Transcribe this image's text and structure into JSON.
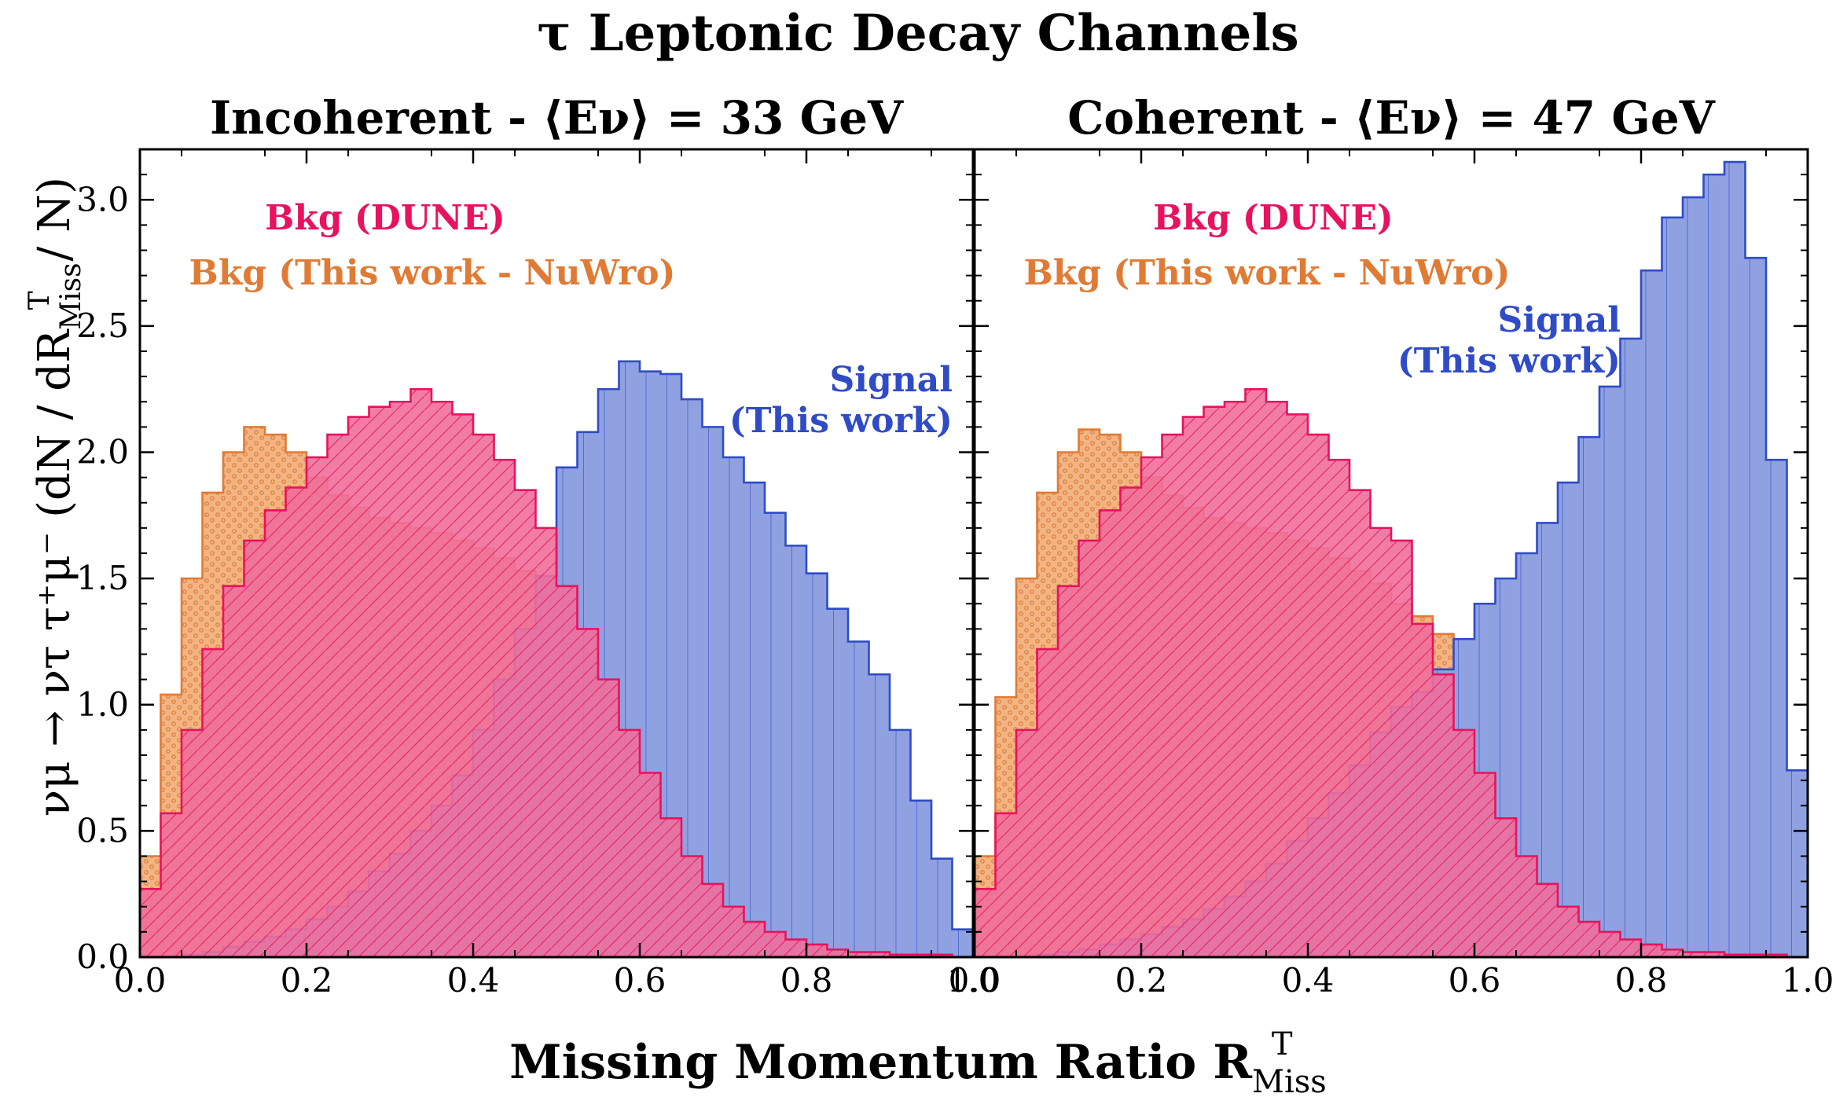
{
  "figure": {
    "title": "τ Leptonic Decay Channels",
    "ylabel": "νμ → ντ τ⁺μ⁻ (dN / dR",
    "ylabel_sup": "T",
    "ylabel_sub": "Miss",
    "ylabel_tail": " / N)",
    "xlabel": "Missing Momentum Ratio R",
    "xlabel_sup": "T",
    "xlabel_sub": "Miss"
  },
  "colors": {
    "signal_fill": "#8fa1e0",
    "signal_edge": "#2f4bc7",
    "dune_fill": "#f06f9b",
    "dune_edge": "#e8125e",
    "nuwro_fill": "#f2b483",
    "nuwro_edge": "#e07b35"
  },
  "chart_data": [
    {
      "type": "bar",
      "title": "Incoherent - ⟨Eν⟩ = 33 GeV",
      "xlim": [
        0.0,
        1.0
      ],
      "ylim": [
        0.0,
        3.2
      ],
      "xticks": [
        "0.0",
        "0.2",
        "0.4",
        "0.6",
        "0.8",
        "1.0"
      ],
      "yticks": [
        "0.0",
        "0.5",
        "1.0",
        "1.5",
        "2.0",
        "2.5",
        "3.0"
      ],
      "bin_width": 0.025,
      "legend": {
        "dune": "Bkg (DUNE)",
        "nuwro": "Bkg (This work - NuWro)",
        "signal_line1": "Signal",
        "signal_line2": "(This work)"
      },
      "series": [
        {
          "name": "Bkg (This work - NuWro)",
          "key": "nuwro",
          "values": [
            0.4,
            1.04,
            1.5,
            1.84,
            2.0,
            2.1,
            2.07,
            2.0,
            1.9,
            1.83,
            1.78,
            1.74,
            1.72,
            1.7,
            1.68,
            1.65,
            1.62,
            1.58,
            1.53,
            1.48,
            1.4,
            1.35,
            1.2,
            1.0,
            0.8,
            0.58,
            0.4,
            0.3,
            0.22,
            0.16,
            0.12,
            0.09,
            0.07,
            0.05,
            0.04,
            0.03,
            0.02,
            0.01,
            0.01,
            0.0
          ]
        },
        {
          "name": "Bkg (DUNE)",
          "key": "dune",
          "values": [
            0.27,
            0.57,
            0.9,
            1.22,
            1.47,
            1.65,
            1.77,
            1.86,
            1.98,
            2.07,
            2.14,
            2.18,
            2.2,
            2.25,
            2.2,
            2.15,
            2.07,
            1.97,
            1.85,
            1.7,
            1.47,
            1.3,
            1.1,
            0.9,
            0.73,
            0.55,
            0.4,
            0.29,
            0.2,
            0.14,
            0.1,
            0.07,
            0.05,
            0.03,
            0.02,
            0.02,
            0.01,
            0.01,
            0.01,
            0.0
          ]
        },
        {
          "name": "Signal",
          "key": "signal",
          "values": [
            0.0,
            0.0,
            0.01,
            0.02,
            0.04,
            0.06,
            0.08,
            0.11,
            0.15,
            0.2,
            0.26,
            0.34,
            0.41,
            0.5,
            0.6,
            0.72,
            0.9,
            1.1,
            1.3,
            1.51,
            1.94,
            2.08,
            2.25,
            2.36,
            2.32,
            2.31,
            2.21,
            2.1,
            1.98,
            1.88,
            1.76,
            1.63,
            1.52,
            1.38,
            1.25,
            1.12,
            0.9,
            0.62,
            0.39,
            0.11
          ]
        }
      ],
      "legend_font_size_px": 44,
      "legend_layout": "upper-left-inset"
    },
    {
      "type": "bar",
      "title": "Coherent - ⟨Eν⟩ = 47 GeV",
      "xlim": [
        0.0,
        1.0
      ],
      "ylim": [
        0.0,
        3.2
      ],
      "xticks": [
        "0.0",
        "0.2",
        "0.4",
        "0.6",
        "0.8",
        "1.0"
      ],
      "yticks": [],
      "bin_width": 0.025,
      "legend": {
        "dune": "Bkg (DUNE)",
        "nuwro": "Bkg (This work - NuWro)",
        "signal_line1": "Signal",
        "signal_line2": "(This work)"
      },
      "series": [
        {
          "name": "Bkg (This work - NuWro)",
          "key": "nuwro",
          "values": [
            0.4,
            1.03,
            1.5,
            1.84,
            2.0,
            2.09,
            2.07,
            2.0,
            1.9,
            1.83,
            1.78,
            1.74,
            1.72,
            1.7,
            1.68,
            1.65,
            1.62,
            1.58,
            1.53,
            1.48,
            1.4,
            1.35,
            1.28,
            1.2,
            1.0,
            0.8,
            0.58,
            0.4,
            0.3,
            0.22,
            0.16,
            0.12,
            0.09,
            0.07,
            0.05,
            0.04,
            0.03,
            0.02,
            0.01,
            0.0
          ]
        },
        {
          "name": "Bkg (DUNE)",
          "key": "dune",
          "values": [
            0.27,
            0.57,
            0.9,
            1.22,
            1.47,
            1.65,
            1.77,
            1.86,
            1.98,
            2.07,
            2.14,
            2.18,
            2.2,
            2.25,
            2.2,
            2.15,
            2.07,
            1.97,
            1.85,
            1.7,
            1.65,
            1.32,
            1.12,
            0.9,
            0.73,
            0.55,
            0.4,
            0.29,
            0.2,
            0.14,
            0.1,
            0.07,
            0.05,
            0.03,
            0.02,
            0.02,
            0.01,
            0.01,
            0.01,
            0.0
          ]
        },
        {
          "name": "Signal",
          "key": "signal",
          "values": [
            0.0,
            0.0,
            0.0,
            0.01,
            0.02,
            0.03,
            0.05,
            0.07,
            0.09,
            0.12,
            0.15,
            0.19,
            0.24,
            0.3,
            0.37,
            0.46,
            0.55,
            0.65,
            0.76,
            0.89,
            0.99,
            1.05,
            1.14,
            1.26,
            1.4,
            1.5,
            1.6,
            1.72,
            1.88,
            2.06,
            2.26,
            2.45,
            2.72,
            2.93,
            3.01,
            3.1,
            3.15,
            2.77,
            1.97,
            0.74
          ]
        }
      ],
      "legend_font_size_px": 44,
      "legend_layout": "upper-center-inset"
    }
  ]
}
